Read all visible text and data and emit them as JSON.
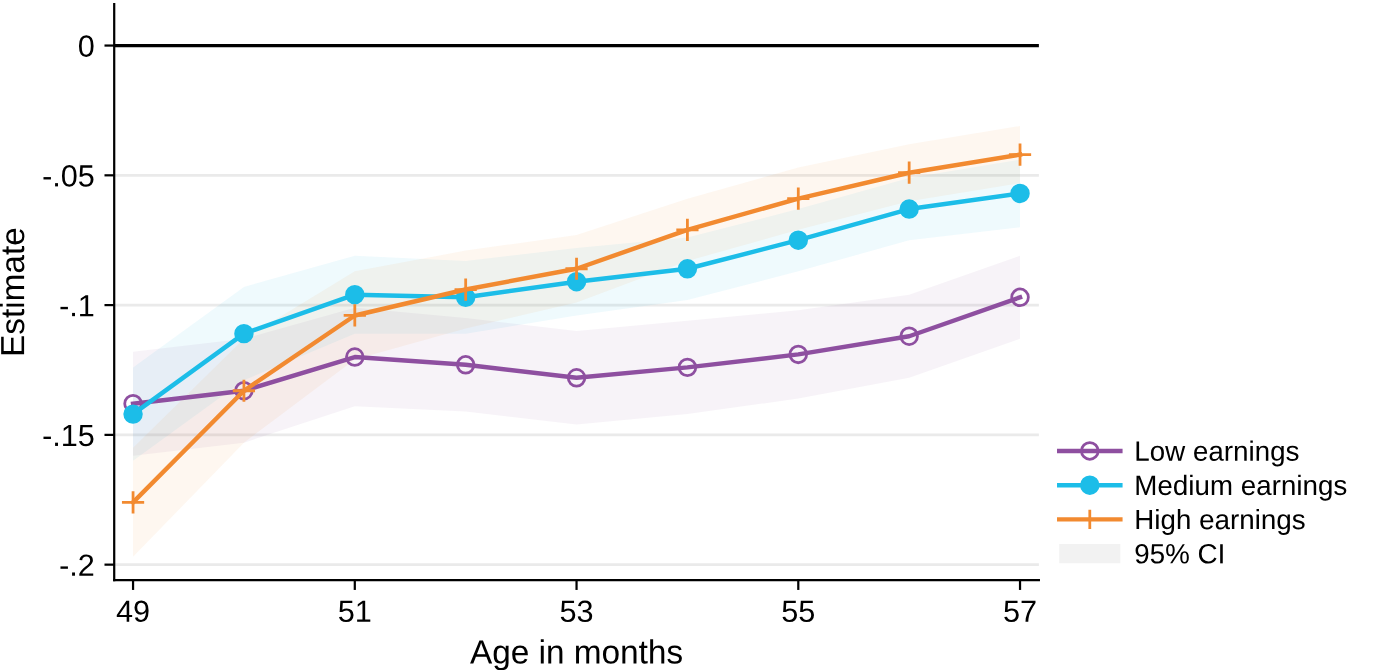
{
  "chart_data": {
    "type": "line",
    "xlabel": "Age in months",
    "ylabel": "Estimate",
    "x": [
      49,
      50,
      51,
      52,
      53,
      54,
      55,
      56,
      57
    ],
    "series": [
      {
        "name": "Low earnings",
        "color": "#8e4fa0",
        "marker": "circle",
        "values": [
          -0.138,
          -0.133,
          -0.12,
          -0.123,
          -0.128,
          -0.124,
          -0.119,
          -0.112,
          -0.097
        ],
        "lower": [
          -0.158,
          -0.153,
          -0.139,
          -0.141,
          -0.146,
          -0.142,
          -0.136,
          -0.128,
          -0.113
        ],
        "upper": [
          -0.118,
          -0.113,
          -0.101,
          -0.105,
          -0.11,
          -0.106,
          -0.102,
          -0.096,
          -0.081
        ]
      },
      {
        "name": "Medium earnings",
        "color": "#1cbde8",
        "marker": "circle",
        "values": [
          -0.142,
          -0.111,
          -0.096,
          -0.097,
          -0.091,
          -0.086,
          -0.075,
          -0.063,
          -0.057
        ],
        "lower": [
          -0.16,
          -0.129,
          -0.111,
          -0.111,
          -0.104,
          -0.098,
          -0.087,
          -0.075,
          -0.07
        ],
        "upper": [
          -0.124,
          -0.093,
          -0.081,
          -0.083,
          -0.078,
          -0.074,
          -0.063,
          -0.051,
          -0.044
        ]
      },
      {
        "name": "High earnings",
        "color": "#f28a30",
        "marker": "cross",
        "values": [
          -0.176,
          -0.133,
          -0.104,
          -0.094,
          -0.086,
          -0.071,
          -0.059,
          -0.049,
          -0.042
        ],
        "lower": [
          -0.197,
          -0.153,
          -0.121,
          -0.109,
          -0.099,
          -0.083,
          -0.071,
          -0.06,
          -0.053
        ],
        "upper": [
          -0.155,
          -0.113,
          -0.087,
          -0.079,
          -0.073,
          -0.059,
          -0.047,
          -0.038,
          -0.031
        ]
      }
    ],
    "annotations": [
      "95% CI"
    ],
    "xlim": [
      48.83,
      57.17
    ],
    "xticks": [
      49,
      51,
      53,
      55,
      57
    ],
    "ylim": [
      -0.206,
      0.016
    ],
    "yticks": [
      {
        "value": 0,
        "label": "0"
      },
      {
        "value": -0.05,
        "label": "-.05"
      },
      {
        "value": -0.1,
        "label": "-.1"
      },
      {
        "value": -0.15,
        "label": "-.15"
      },
      {
        "value": -0.2,
        "label": "-.2"
      }
    ],
    "ref_lines": [
      {
        "axis": "y",
        "value": 0,
        "label": null,
        "color": "#000000"
      }
    ],
    "grid": "y",
    "legend": "right"
  }
}
